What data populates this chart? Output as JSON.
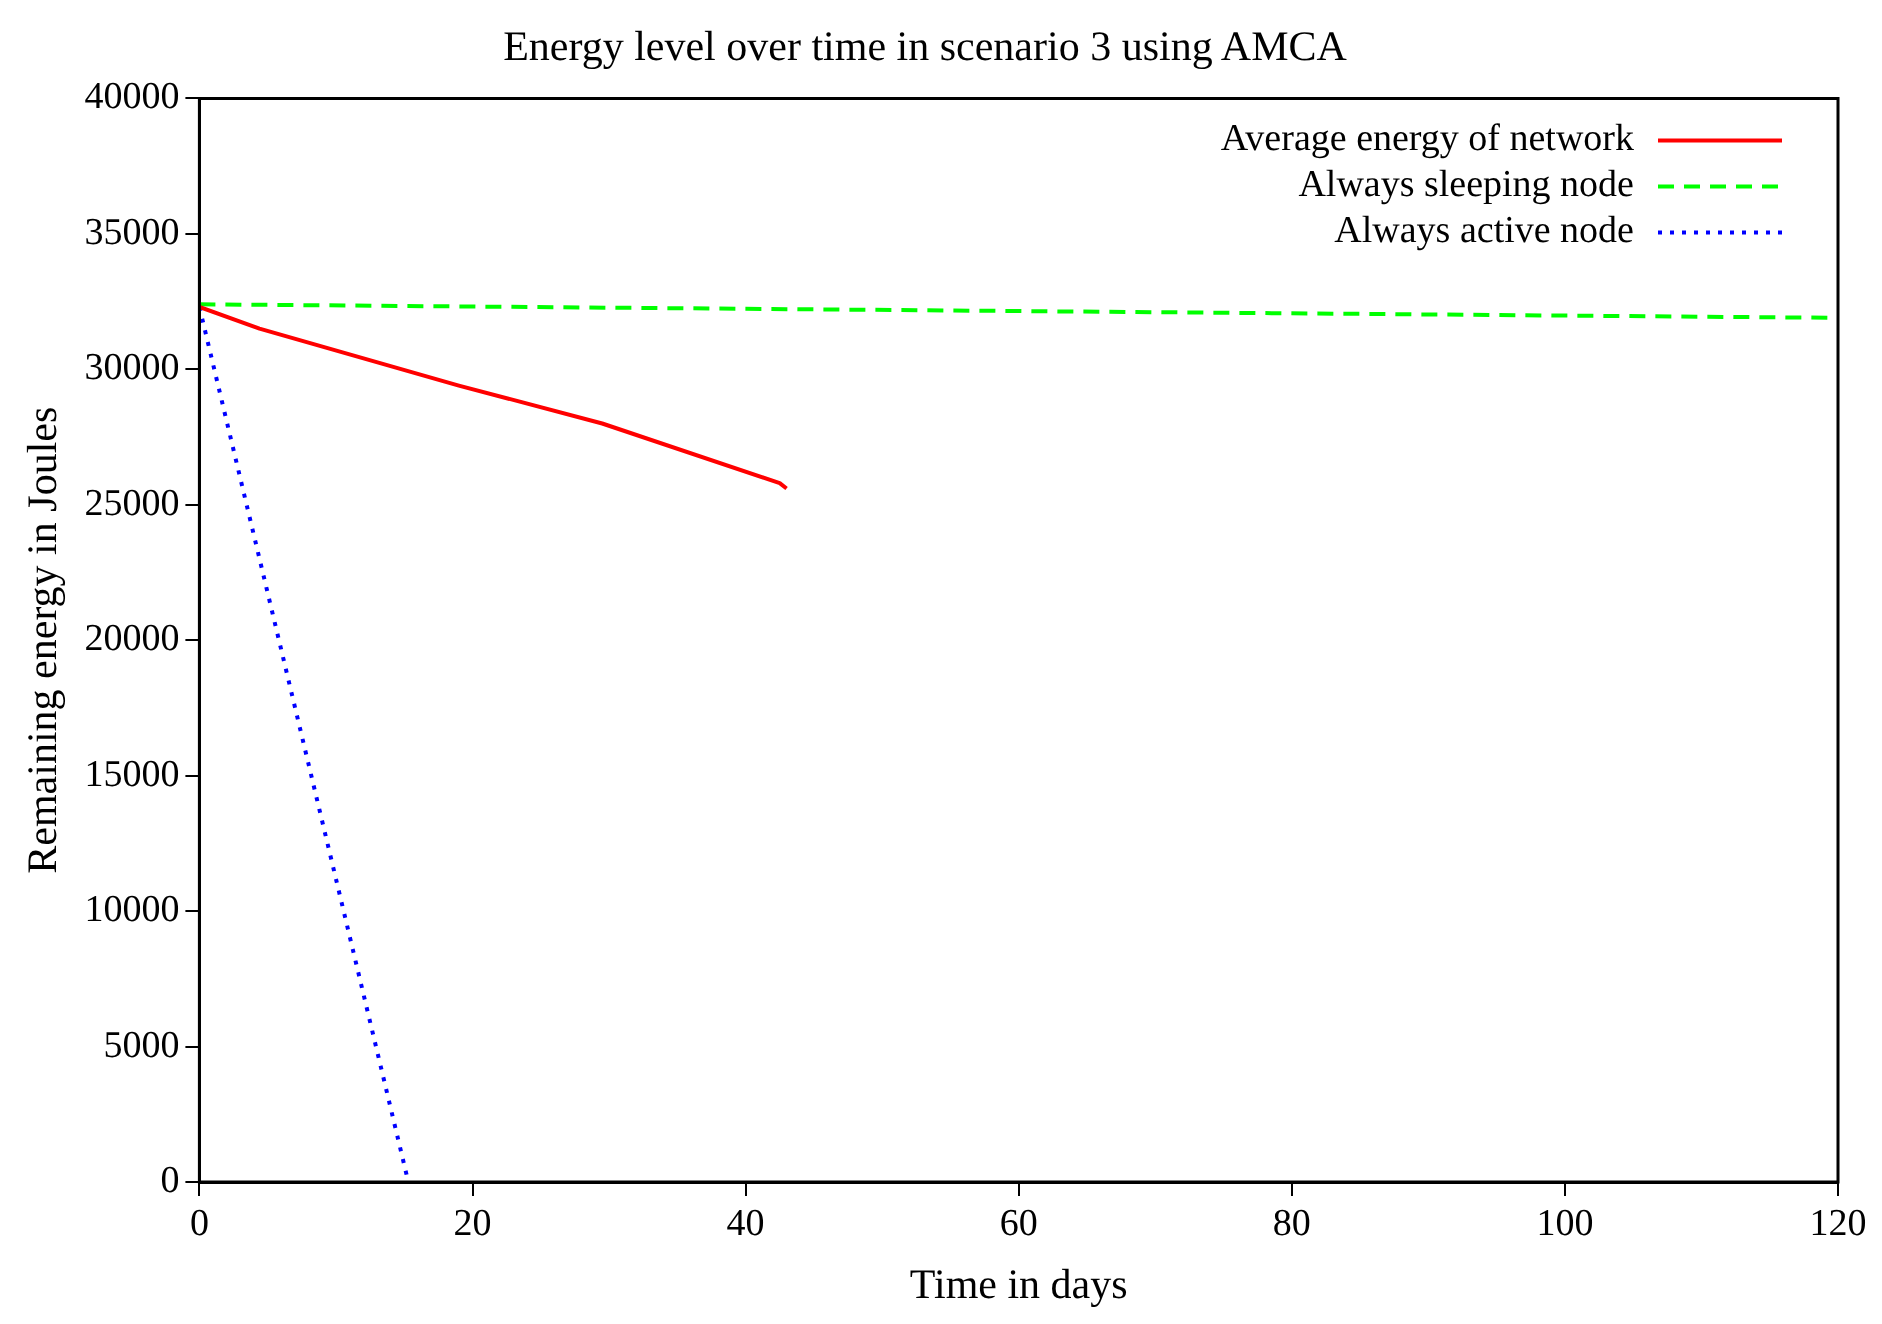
{
  "chart_data": {
    "type": "line",
    "title": "Energy level over time in scenario 3 using AMCA",
    "xlabel": "Time in days",
    "ylabel": "Remaining energy in Joules",
    "xlim": [
      0,
      120
    ],
    "xticks": [
      0,
      20,
      40,
      60,
      80,
      100,
      120
    ],
    "ylim": [
      0,
      40000
    ],
    "yticks": [
      0,
      5000,
      10000,
      15000,
      20000,
      25000,
      30000,
      35000,
      40000
    ],
    "grid": false,
    "legend": "top right",
    "marker": "none",
    "series": [
      {
        "name": "Average energy of network",
        "color": "#ff0000",
        "line_style": "solid",
        "x": [
          0,
          4.4,
          19,
          29.5,
          42.5,
          43
        ],
        "values": [
          32300,
          31500,
          29400,
          28000,
          25800,
          25600
        ]
      },
      {
        "name": "Always sleeping node",
        "color": "#00ff00",
        "line_style": "dashed",
        "x": [
          0,
          120
        ],
        "values": [
          32400,
          31900
        ]
      },
      {
        "name": "Always active node",
        "color": "#0000ff",
        "line_style": "dotted",
        "x": [
          0,
          15.3
        ],
        "values": [
          32300,
          0
        ]
      }
    ]
  }
}
